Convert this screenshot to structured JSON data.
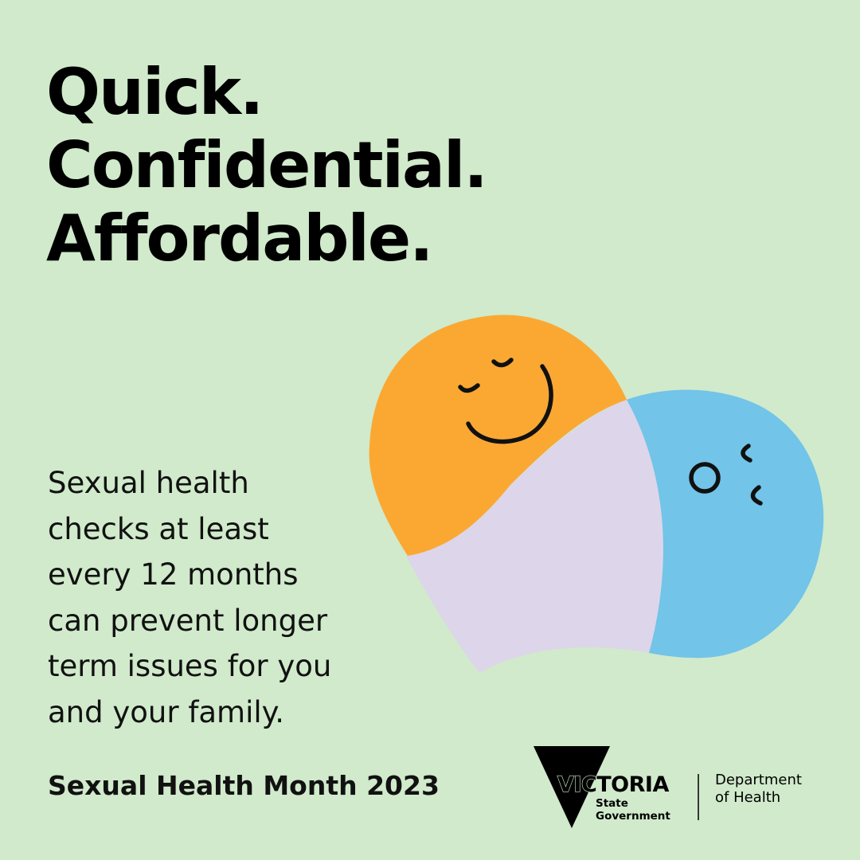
{
  "colors": {
    "background": "#d0eacb",
    "orange_blob": "#fba833",
    "blue_blob": "#72c4e8",
    "lilac_blob": "#ddd5ea",
    "text": "#000000"
  },
  "headline": {
    "line1": "Quick.",
    "line2": "Confidential.",
    "line3": "Affordable."
  },
  "blurb": {
    "lines": [
      "Sexual health",
      "checks at least",
      "every 12 months",
      "can prevent longer",
      "term issues for you",
      "and your family."
    ]
  },
  "footer": {
    "campaign": "Sexual Health Month 2023"
  },
  "logo": {
    "wordmark": "VICTORIA",
    "line1": "State",
    "line2": "Government",
    "department_line1": "Department",
    "department_line2": "of Health"
  },
  "icons": [
    "smiling-orange-face-icon",
    "blue-face-icon",
    "victoria-triangle-icon"
  ]
}
